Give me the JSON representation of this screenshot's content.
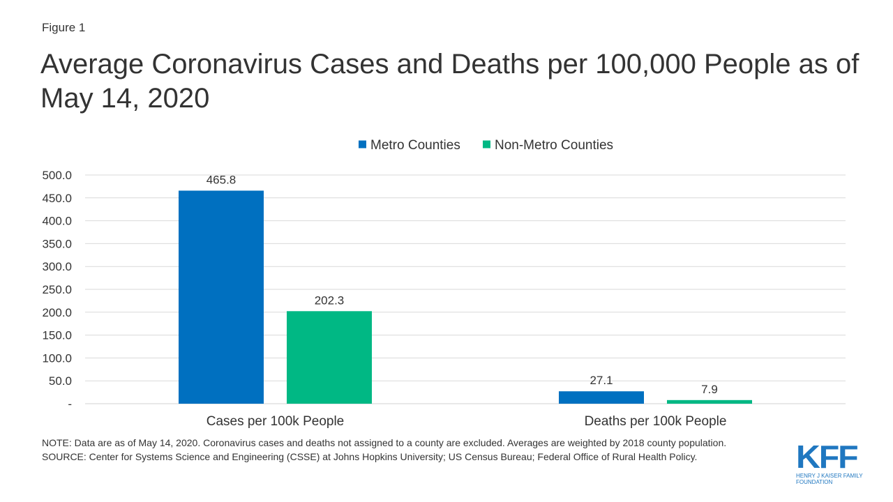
{
  "figure_label": "Figure 1",
  "chart_data": {
    "type": "bar",
    "title": "Average Coronavirus Cases and Deaths per 100,000 People as of May 14, 2020",
    "categories": [
      "Cases per 100k People",
      "Deaths per 100k People"
    ],
    "series": [
      {
        "name": "Metro Counties",
        "values": [
          465.8,
          27.1
        ],
        "labels": [
          "465.8",
          "27.1"
        ],
        "color": "#0070c0"
      },
      {
        "name": "Non-Metro Counties",
        "values": [
          202.3,
          7.9
        ],
        "labels": [
          "202.3",
          "7.9"
        ],
        "color": "#00b884"
      }
    ],
    "ylim": [
      0,
      500
    ],
    "yticks": [
      0,
      50,
      100,
      150,
      200,
      250,
      300,
      350,
      400,
      450,
      500
    ],
    "ytick_labels": [
      "-",
      "50.0",
      "100.0",
      "150.0",
      "200.0",
      "250.0",
      "300.0",
      "350.0",
      "400.0",
      "450.0",
      "500.0"
    ],
    "grid": true,
    "legend_position": "top-center",
    "xlabel": "",
    "ylabel": ""
  },
  "note": "NOTE: Data are as of May 14, 2020. Coronavirus cases and deaths not assigned to a county are excluded. Averages are weighted by 2018 county population.",
  "source": "SOURCE: Center for Systems Science and Engineering (CSSE) at Johns Hopkins University; US Census Bureau; Federal Office of Rural Health Policy.",
  "logo": {
    "mark": "KFF",
    "org": "Henry J Kaiser Family Foundation"
  }
}
